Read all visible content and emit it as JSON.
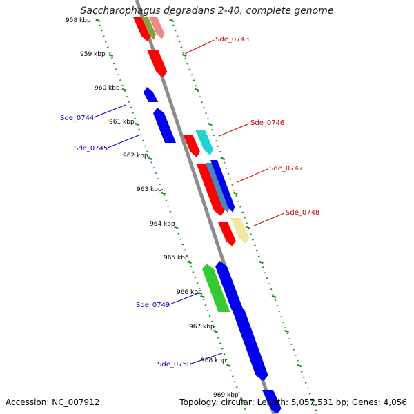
{
  "title": "Saccharophagus degradans 2-40, complete genome",
  "accession": "Accession: NC_007912",
  "summary": "Topology: circular; Length: 5,057,531 bp; Genes: 4,056",
  "kbp_ticks": [
    "958 kbp",
    "959 kbp",
    "960 kbp",
    "961 kbp",
    "962 kbp",
    "963 kbp",
    "964 kbp",
    "965 kbp",
    "966 kbp",
    "967 kbp",
    "968 kbp",
    "969 kbp"
  ],
  "gene_labels": {
    "forward": [
      "Sde_0743",
      "Sde_0746",
      "Sde_0747",
      "Sde_0748"
    ],
    "reverse": [
      "Sde_0744",
      "Sde_0745",
      "Sde_0749",
      "Sde_0750"
    ]
  },
  "colors": {
    "backbone": "#8c8c8c",
    "forward_label": "#cc0000",
    "reverse_label": "#0000b0",
    "forward_gene": "#ff0000",
    "reverse_gene": "#0000ee",
    "cyan_gene": "#22d3d3",
    "steel_gene": "#4a86c0",
    "khaki_gene": "#f2e6a0",
    "green_gene": "#33cc33",
    "olive_gene": "#8aa040",
    "salmon_gene": "#f08a8a",
    "track_dots": "#1a8c1a"
  }
}
